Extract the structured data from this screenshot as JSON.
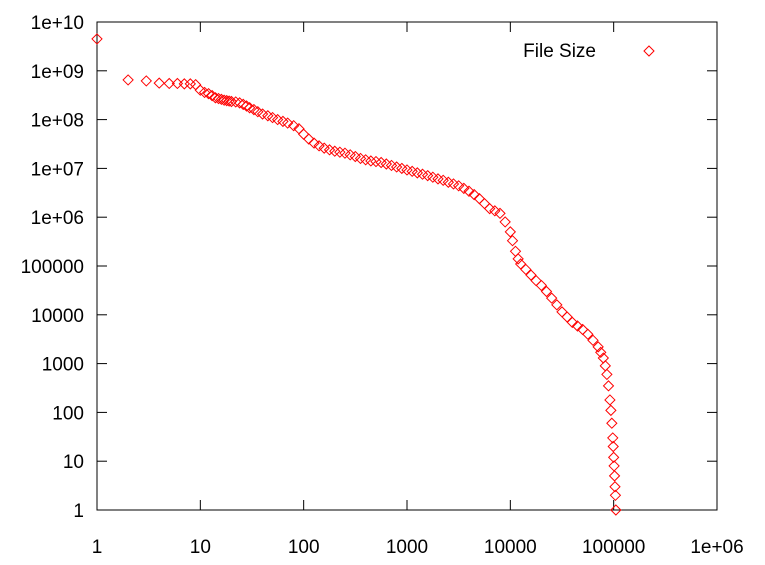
{
  "chart_data": {
    "type": "scatter",
    "title": "",
    "xlabel": "",
    "ylabel": "",
    "x_scale": "log",
    "y_scale": "log",
    "xlim": [
      1,
      1000000
    ],
    "ylim": [
      1,
      10000000000
    ],
    "grid": false,
    "legend_position": "top-right",
    "x_ticks": [
      {
        "value": 1,
        "label": "1"
      },
      {
        "value": 10,
        "label": "10"
      },
      {
        "value": 100,
        "label": "100"
      },
      {
        "value": 1000,
        "label": "1000"
      },
      {
        "value": 10000,
        "label": "10000"
      },
      {
        "value": 100000,
        "label": "100000"
      },
      {
        "value": 1000000,
        "label": "1e+06"
      }
    ],
    "y_ticks": [
      {
        "value": 1,
        "label": "1"
      },
      {
        "value": 10,
        "label": "10"
      },
      {
        "value": 100,
        "label": "100"
      },
      {
        "value": 1000,
        "label": "1000"
      },
      {
        "value": 10000,
        "label": "10000"
      },
      {
        "value": 100000,
        "label": "100000"
      },
      {
        "value": 1000000,
        "label": "1e+06"
      },
      {
        "value": 10000000,
        "label": "1e+07"
      },
      {
        "value": 100000000,
        "label": "1e+08"
      },
      {
        "value": 1000000000,
        "label": "1e+09"
      },
      {
        "value": 10000000000,
        "label": "1e+10"
      }
    ],
    "series": [
      {
        "name": "File Size",
        "color": "#ff0000",
        "marker": "diamond",
        "points": [
          [
            1,
            4500000000
          ],
          [
            2,
            650000000
          ],
          [
            3,
            620000000
          ],
          [
            4,
            560000000
          ],
          [
            5,
            550000000
          ],
          [
            6,
            550000000
          ],
          [
            7,
            540000000
          ],
          [
            8,
            540000000
          ],
          [
            9,
            520000000
          ],
          [
            10,
            400000000
          ],
          [
            11,
            360000000
          ],
          [
            12,
            340000000
          ],
          [
            13,
            310000000
          ],
          [
            14,
            280000000
          ],
          [
            15,
            270000000
          ],
          [
            16,
            260000000
          ],
          [
            17,
            250000000
          ],
          [
            18,
            245000000
          ],
          [
            19,
            240000000
          ],
          [
            20,
            235000000
          ],
          [
            22,
            230000000
          ],
          [
            24,
            220000000
          ],
          [
            26,
            205000000
          ],
          [
            28,
            190000000
          ],
          [
            30,
            175000000
          ],
          [
            33,
            160000000
          ],
          [
            36,
            145000000
          ],
          [
            40,
            130000000
          ],
          [
            45,
            120000000
          ],
          [
            50,
            110000000
          ],
          [
            56,
            100000000
          ],
          [
            63,
            92000000
          ],
          [
            70,
            85000000
          ],
          [
            80,
            75000000
          ],
          [
            90,
            65000000
          ],
          [
            100,
            50000000
          ],
          [
            112,
            40000000
          ],
          [
            126,
            33000000
          ],
          [
            141,
            29000000
          ],
          [
            158,
            26000000
          ],
          [
            178,
            24000000
          ],
          [
            200,
            22500000
          ],
          [
            224,
            21500000
          ],
          [
            251,
            20500000
          ],
          [
            282,
            19000000
          ],
          [
            316,
            17500000
          ],
          [
            355,
            16000000
          ],
          [
            398,
            15000000
          ],
          [
            447,
            14200000
          ],
          [
            501,
            13800000
          ],
          [
            562,
            13200000
          ],
          [
            631,
            12300000
          ],
          [
            708,
            11500000
          ],
          [
            794,
            10700000
          ],
          [
            891,
            10000000
          ],
          [
            1000,
            9300000
          ],
          [
            1122,
            8700000
          ],
          [
            1259,
            8100000
          ],
          [
            1413,
            7600000
          ],
          [
            1585,
            7100000
          ],
          [
            1778,
            6600000
          ],
          [
            1995,
            6100000
          ],
          [
            2239,
            5700000
          ],
          [
            2512,
            5200000
          ],
          [
            2818,
            4800000
          ],
          [
            3162,
            4400000
          ],
          [
            3548,
            3900000
          ],
          [
            3981,
            3400000
          ],
          [
            4467,
            2900000
          ],
          [
            5012,
            2400000
          ],
          [
            5623,
            1900000
          ],
          [
            6310,
            1500000
          ],
          [
            7079,
            1350000
          ],
          [
            7943,
            1200000
          ],
          [
            8913,
            800000
          ],
          [
            10000,
            500000
          ],
          [
            10500,
            330000
          ],
          [
            11220,
            200000
          ],
          [
            11900,
            140000
          ],
          [
            12590,
            110000
          ],
          [
            14130,
            85000
          ],
          [
            15850,
            65000
          ],
          [
            17780,
            50000
          ],
          [
            19950,
            40000
          ],
          [
            22390,
            30000
          ],
          [
            25120,
            22000
          ],
          [
            28180,
            16000
          ],
          [
            31620,
            11500
          ],
          [
            35480,
            9000
          ],
          [
            39810,
            7000
          ],
          [
            44670,
            5900
          ],
          [
            50120,
            5000
          ],
          [
            56230,
            4000
          ],
          [
            63100,
            3000
          ],
          [
            70790,
            2200
          ],
          [
            75000,
            1700
          ],
          [
            79430,
            1300
          ],
          [
            83000,
            900
          ],
          [
            86000,
            600
          ],
          [
            89130,
            350
          ],
          [
            92000,
            180
          ],
          [
            94000,
            110
          ],
          [
            96000,
            60
          ],
          [
            98000,
            30
          ],
          [
            99000,
            20
          ],
          [
            100000,
            12
          ],
          [
            101000,
            8
          ],
          [
            102000,
            5
          ],
          [
            103000,
            3
          ],
          [
            104000,
            2
          ],
          [
            105000,
            1
          ]
        ]
      }
    ]
  }
}
